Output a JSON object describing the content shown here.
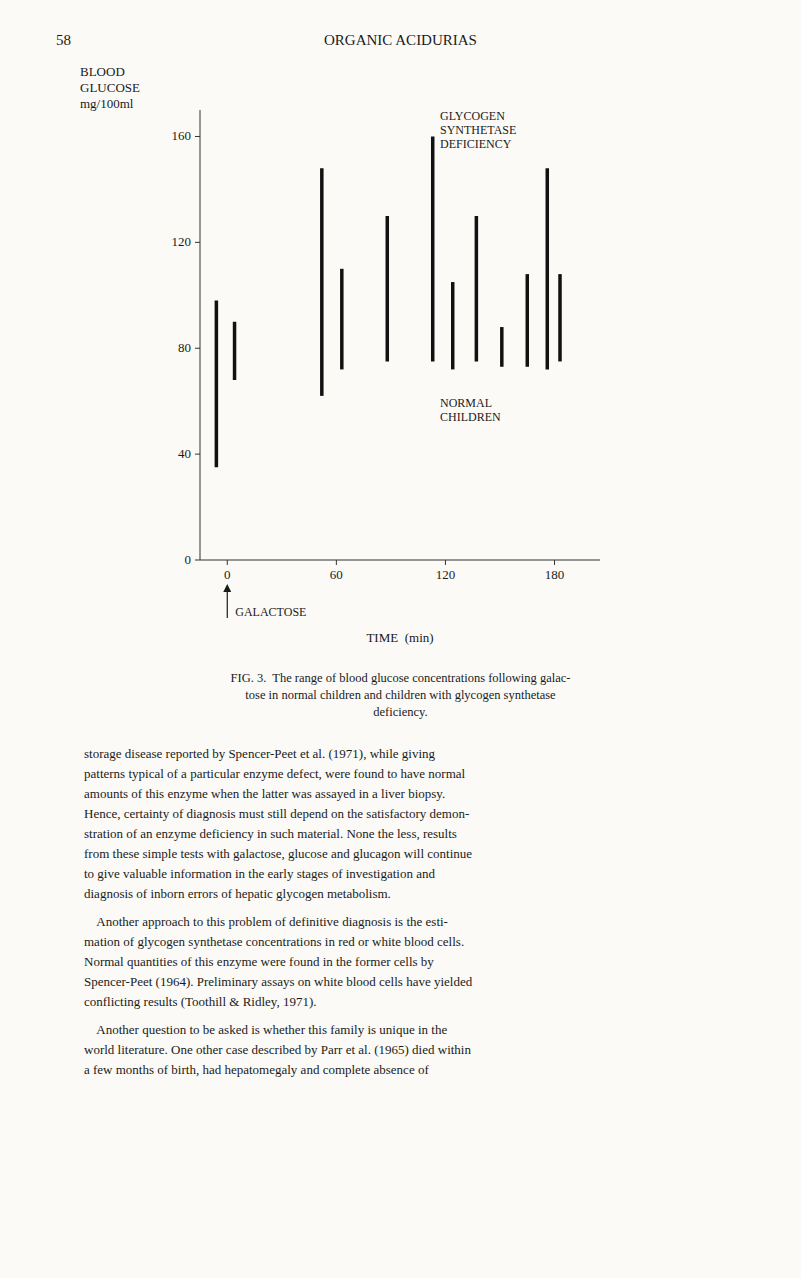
{
  "chart_data": {
    "type": "range_bar",
    "xlabel": "TIME  (min)",
    "ylabel": [
      "BLOOD",
      "GLUCOSE",
      "mg/100ml"
    ],
    "xlim": [
      -15,
      205
    ],
    "xticks": [
      0,
      60,
      120,
      180
    ],
    "ylim": [
      0,
      170
    ],
    "yticks": [
      0,
      40,
      80,
      120,
      160
    ],
    "annotations": [
      {
        "text": "GALACTOSE",
        "x": 0
      }
    ],
    "series": [
      {
        "label": [
          "GLYCOGEN",
          "SYNTHETASE",
          "DEFICIENCY"
        ],
        "color": "#111111",
        "x": [
          -6,
          4,
          52,
          63,
          113,
          124,
          176
        ],
        "low": [
          35,
          68,
          62,
          72,
          75,
          72,
          72
        ],
        "high": [
          98,
          90,
          148,
          110,
          160,
          105,
          148
        ]
      },
      {
        "label": [
          "NORMAL",
          "CHILDREN"
        ],
        "color": "#111111",
        "x": [
          88,
          137,
          151,
          165,
          183
        ],
        "low": [
          75,
          75,
          73,
          73,
          75
        ],
        "high": [
          130,
          130,
          88,
          108,
          108
        ]
      }
    ]
  },
  "page": {
    "page_number": "58",
    "header": "ORGANIC ACIDURIAS",
    "caption": [
      "FIG. 3.  The range of blood glucose concentrations following galac-",
      "tose in normal children and children with glycogen synthetase",
      "deficiency."
    ],
    "body": [
      [
        "storage disease reported by Spencer-Peet et al. (1971), while giving",
        "patterns typical of a particular enzyme defect, were found to have normal",
        "amounts of this enzyme when the latter was assayed in a liver biopsy.",
        "Hence, certainty of diagnosis must still depend on the satisfactory demon-",
        "stration of an enzyme deficiency in such material. None the less, results",
        "from these simple tests with galactose, glucose and glucagon will continue",
        "to give valuable information in the early stages of investigation and",
        "diagnosis of inborn errors of hepatic glycogen metabolism."
      ],
      [
        "    Another approach to this problem of definitive diagnosis is the esti-",
        "mation of glycogen synthetase concentrations in red or white blood cells.",
        "Normal quantities of this enzyme were found in the former cells by",
        "Spencer-Peet (1964). Preliminary assays on white blood cells have yielded",
        "conflicting results (Toothill & Ridley, 1971)."
      ],
      [
        "    Another question to be asked is whether this family is unique in the",
        "world literature. One other case described by Parr et al. (1965) died within",
        "a few months of birth, had hepatomegaly and complete absence of"
      ]
    ]
  }
}
